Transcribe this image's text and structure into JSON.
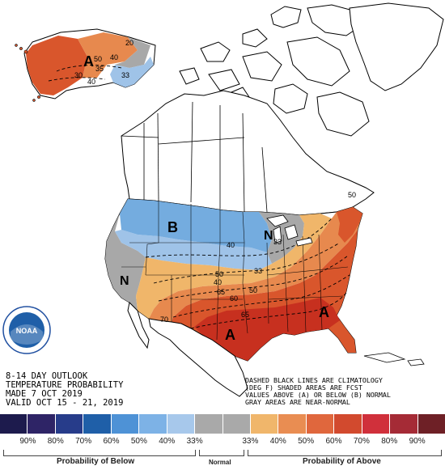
{
  "map": {
    "title_lines": [
      "8-14 DAY OUTLOOK",
      "TEMPERATURE PROBABILITY",
      "MADE  7 OCT 2019",
      "VALID  OCT 15 - 21, 2019"
    ],
    "note_lines": [
      "DASHED BLACK LINES ARE CLIMATOLOGY",
      "(DEG F) SHADED AREAS ARE FCST",
      "VALUES ABOVE (A) OR BELOW (B) NORMAL",
      "GRAY AREAS ARE NEAR-NORMAL"
    ],
    "logo_text": "NOAA",
    "region_labels": {
      "alaska_above": "A",
      "west_normal": "N",
      "north_below": "B",
      "great_lakes_normal": "N",
      "southeast_above": "A",
      "south_above": "A"
    },
    "contour_labels": {
      "ak_50": "50",
      "ak_40": "40",
      "ak_35": "35",
      "ak_30": "30",
      "ak_33": "33",
      "ak_20": "20",
      "ak_40b": "40",
      "cont_40a": "40",
      "cont_33a": "33",
      "cont_50a": "50",
      "cont_40b": "40",
      "cont_65a": "65",
      "cont_50b": "50",
      "cont_60": "60",
      "cont_65b": "65",
      "cont_70": "70",
      "cont_33b": "33",
      "ne_50": "50"
    },
    "colors": {
      "water": "#ffffff",
      "land": "#ffffff",
      "below_40": "#9fc3e8",
      "below_50": "#74acdf",
      "normal_gray": "#a8a8a8",
      "above_40": "#f0b66a",
      "above_50": "#e7894e",
      "above_60": "#d9562c",
      "above_70": "#c7301f"
    }
  },
  "legend": {
    "swatch_colors": [
      "#1d1b4d",
      "#2e2466",
      "#273c8a",
      "#1f5fa8",
      "#4e92d6",
      "#7db2e6",
      "#a7c8eb",
      "#a9a9a9",
      "#a9a9a9",
      "#f0b66b",
      "#e98d52",
      "#e0673d",
      "#d24a2e",
      "#d0303b",
      "#a52b36",
      "#6e2026"
    ],
    "percent_labels": [
      "90%",
      "80%",
      "70%",
      "60%",
      "50%",
      "40%",
      "33%",
      "33%",
      "40%",
      "50%",
      "60%",
      "70%",
      "80%",
      "90%"
    ],
    "below_label": "Probability of Below",
    "normal_label": "Normal",
    "above_label": "Probability of Above"
  }
}
